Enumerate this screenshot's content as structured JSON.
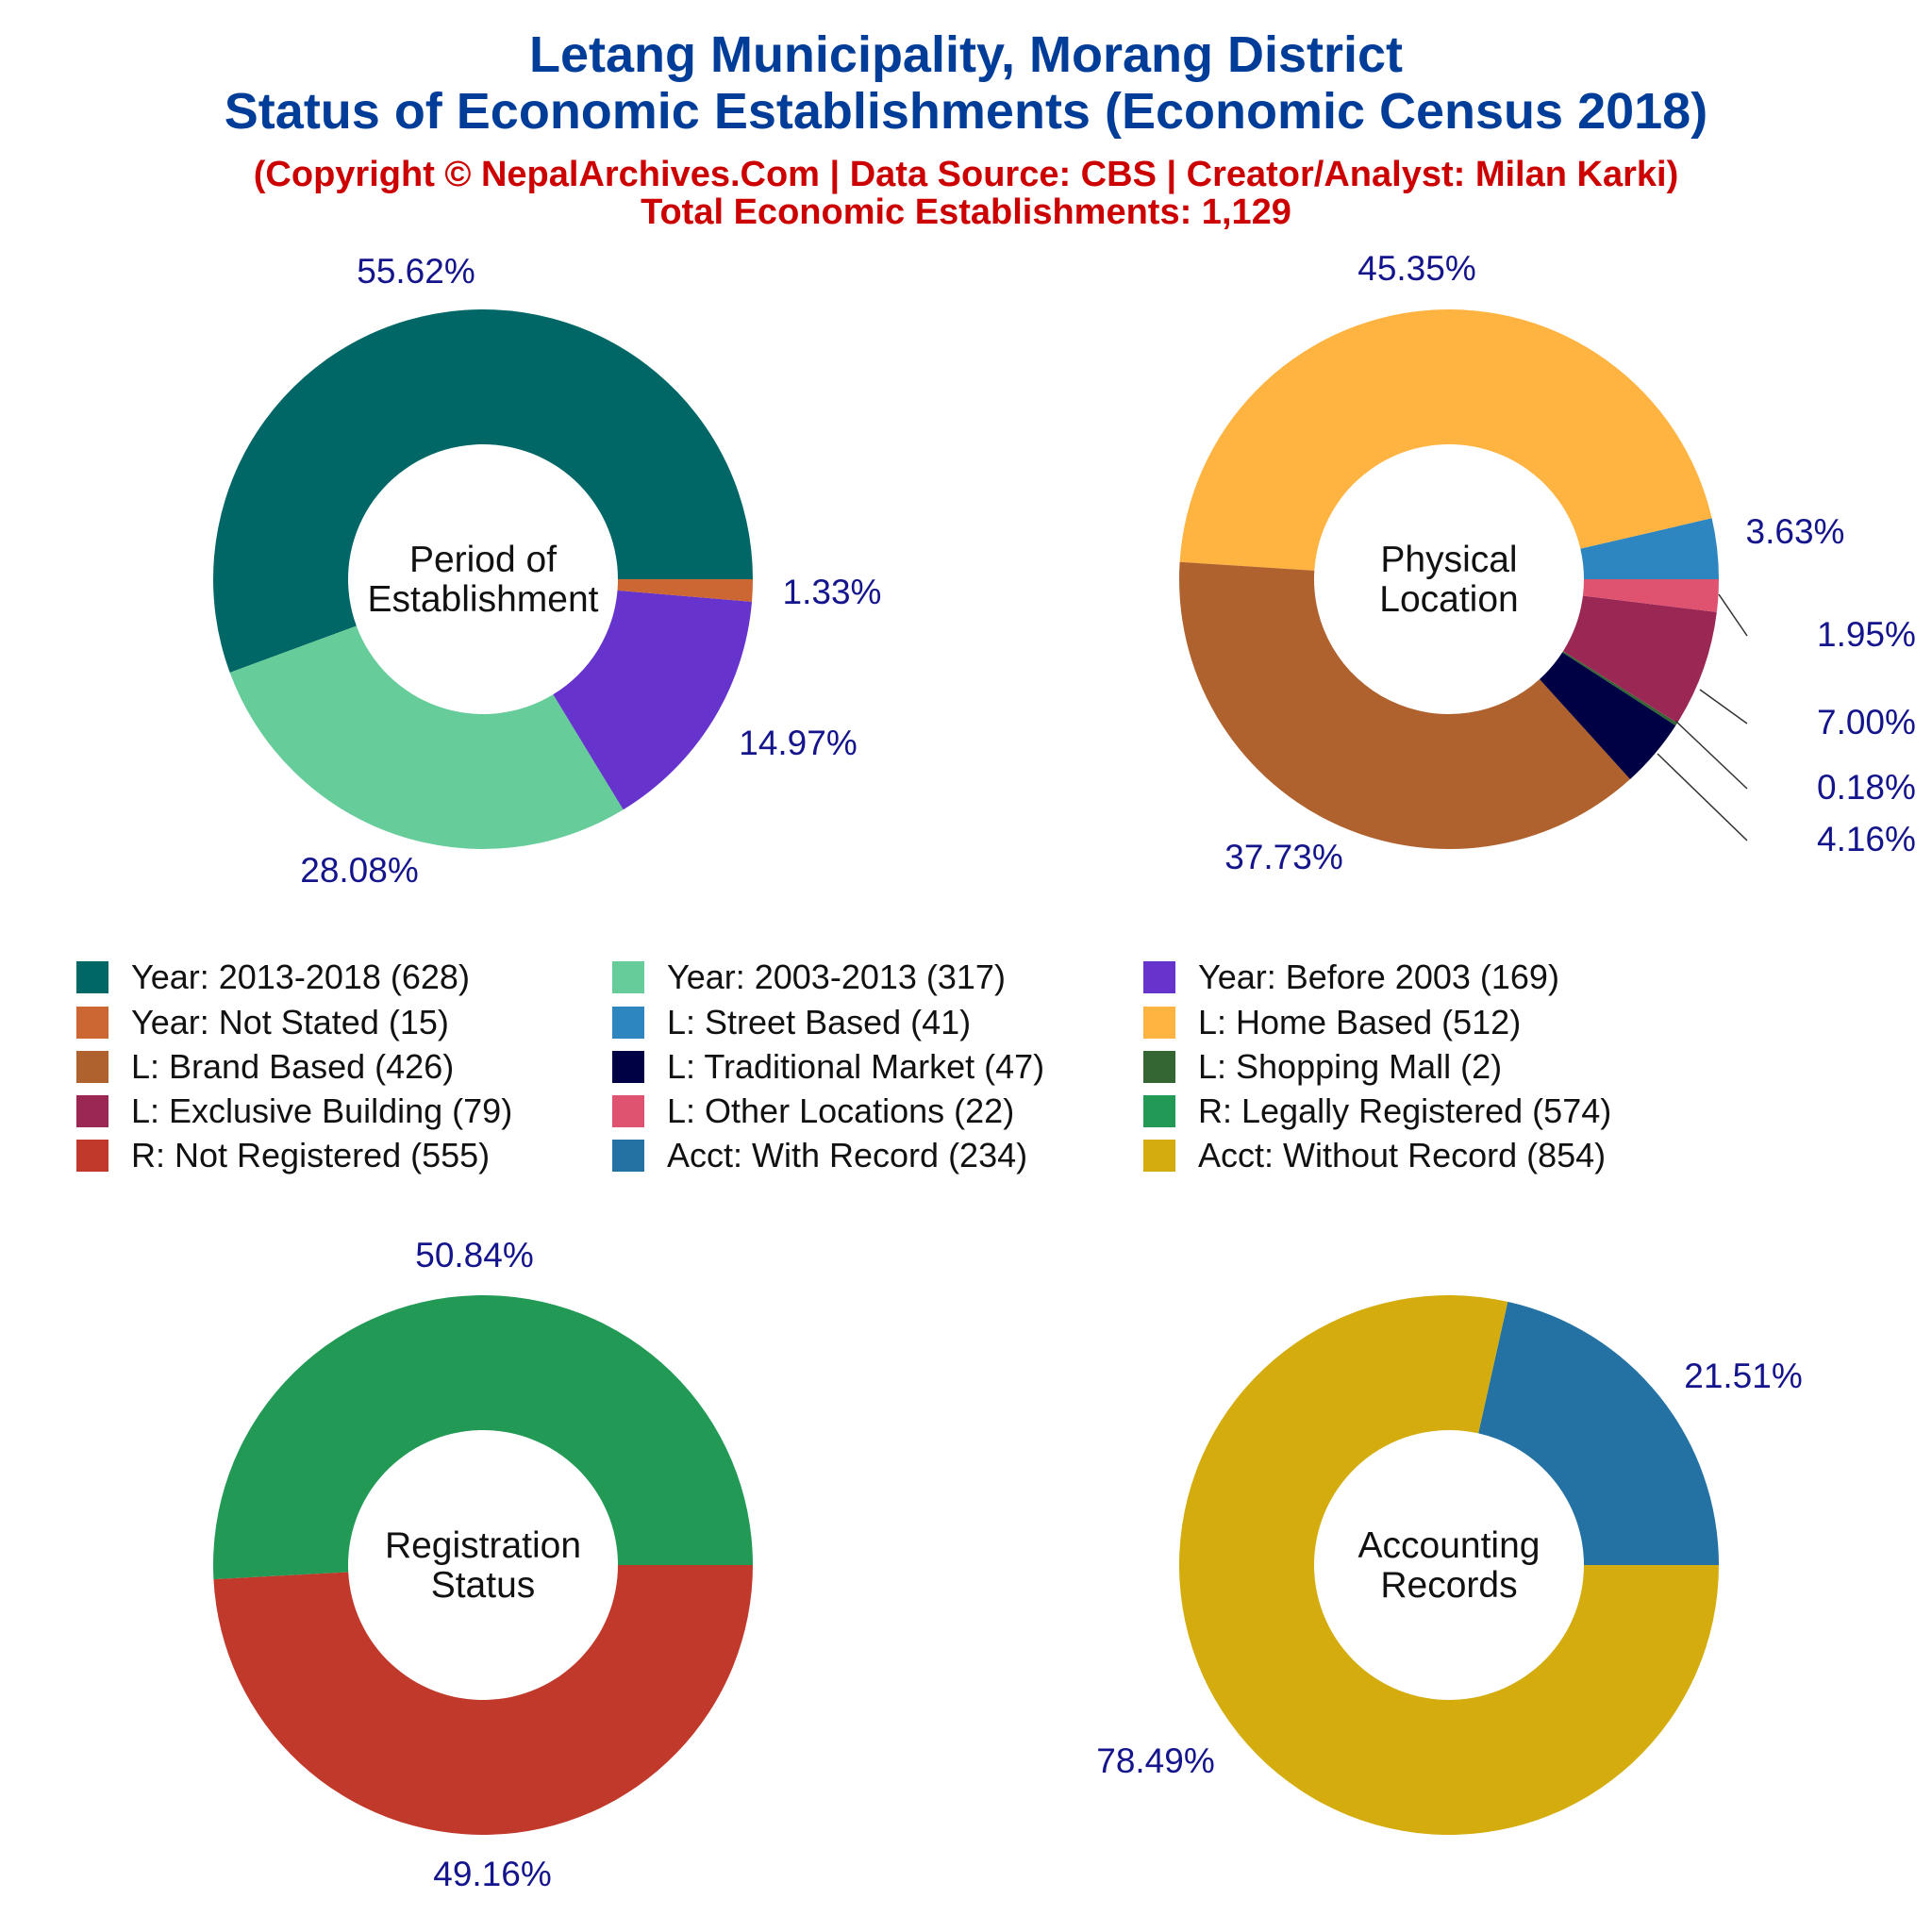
{
  "header": {
    "title_line1": "Letang Municipality, Morang District",
    "title_line2": "Status of Economic Establishments (Economic Census 2018)",
    "copyright": "(Copyright © NepalArchives.Com | Data Source: CBS | Creator/Analyst: Milan Karki)",
    "total": "Total Economic Establishments: 1,129"
  },
  "chart_data": [
    {
      "type": "pie",
      "title": "Period of Establishment",
      "center_label": [
        "Period of",
        "Establishment"
      ],
      "categories": [
        "Year: 2013-2018",
        "Year: 2003-2013",
        "Year: Before 2003",
        "Year: Not Stated"
      ],
      "values": [
        628,
        317,
        169,
        15
      ],
      "labels": [
        "55.62%",
        "28.08%",
        "14.97%",
        "1.33%"
      ],
      "colors": [
        "#006666",
        "#66cc99",
        "#6633cc",
        "#cc6633"
      ]
    },
    {
      "type": "pie",
      "title": "Physical Location",
      "center_label": [
        "Physical",
        "Location"
      ],
      "categories": [
        "L: Street Based",
        "L: Home Based",
        "L: Brand Based",
        "L: Traditional Market",
        "L: Shopping Mall",
        "L: Exclusive Building",
        "L: Other Locations"
      ],
      "values": [
        41,
        512,
        426,
        47,
        2,
        79,
        22
      ],
      "labels": [
        "3.63%",
        "45.35%",
        "37.73%",
        "4.16%",
        "0.18%",
        "7.00%",
        "1.95%"
      ],
      "colors": [
        "#2e86c1",
        "#ffb340",
        "#b0622e",
        "#000044",
        "#336633",
        "#9b2755",
        "#e05370"
      ]
    },
    {
      "type": "pie",
      "title": "Registration Status",
      "center_label": [
        "Registration",
        "Status"
      ],
      "categories": [
        "R: Legally Registered",
        "R: Not Registered"
      ],
      "values": [
        574,
        555
      ],
      "labels": [
        "50.84%",
        "49.16%"
      ],
      "colors": [
        "#229955",
        "#c0392b"
      ]
    },
    {
      "type": "pie",
      "title": "Accounting Records",
      "center_label": [
        "Accounting",
        "Records"
      ],
      "categories": [
        "Acct: With Record",
        "Acct: Without Record"
      ],
      "values": [
        234,
        854
      ],
      "labels": [
        "21.51%",
        "78.49%"
      ],
      "colors": [
        "#2471a3",
        "#d4ac0d"
      ]
    }
  ],
  "legend": [
    {
      "label": "Year: 2013-2018 (628)",
      "color": "#006666"
    },
    {
      "label": "Year: 2003-2013 (317)",
      "color": "#66cc99"
    },
    {
      "label": "Year: Before 2003 (169)",
      "color": "#6633cc"
    },
    {
      "label": "Year: Not Stated (15)",
      "color": "#cc6633"
    },
    {
      "label": "L: Street Based (41)",
      "color": "#2e86c1"
    },
    {
      "label": "L: Home Based (512)",
      "color": "#ffb340"
    },
    {
      "label": "L: Brand Based (426)",
      "color": "#b0622e"
    },
    {
      "label": "L: Traditional Market (47)",
      "color": "#000044"
    },
    {
      "label": "L: Shopping Mall (2)",
      "color": "#336633"
    },
    {
      "label": "L: Exclusive Building (79)",
      "color": "#9b2755"
    },
    {
      "label": "L: Other Locations (22)",
      "color": "#e05370"
    },
    {
      "label": "R: Legally Registered (574)",
      "color": "#229955"
    },
    {
      "label": "R: Not Registered (555)",
      "color": "#c0392b"
    },
    {
      "label": "Acct: With Record (234)",
      "color": "#2471a3"
    },
    {
      "label": "Acct: Without Record (854)",
      "color": "#d4ac0d"
    }
  ]
}
